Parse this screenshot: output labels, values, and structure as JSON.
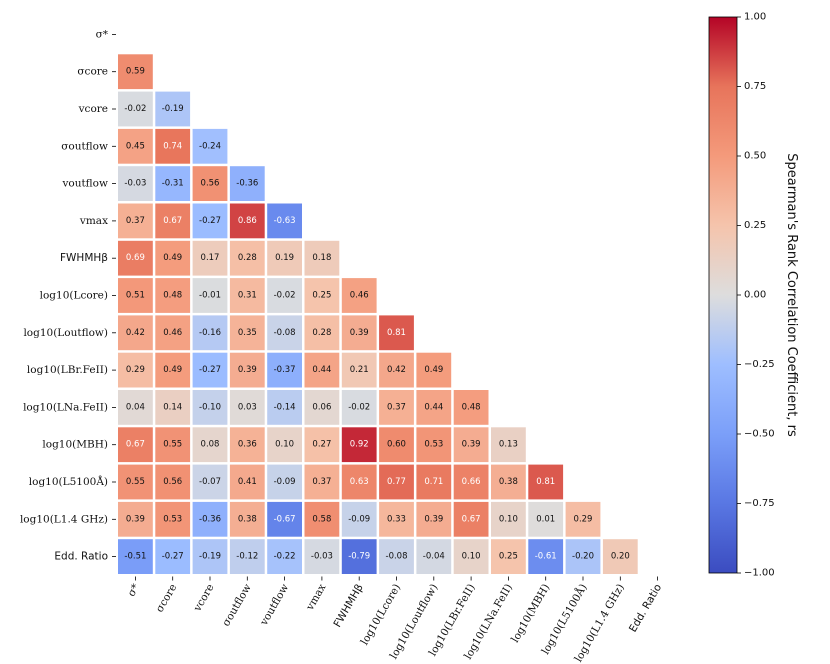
{
  "chart_data": {
    "type": "heatmap",
    "variables": [
      "σ*",
      "σcore",
      "vcore",
      "σoutflow",
      "voutflow",
      "vmax",
      "FWHMHβ",
      "log10(Lcore)",
      "log10(Loutflow)",
      "log10(LBr.FeII)",
      "log10(LNa.FeII)",
      "log10(MBH)",
      "log10(L5100Å)",
      "log10(L1.4 GHz)",
      "Edd. Ratio"
    ],
    "row_labels": [
      "σ*",
      "σcore",
      "vcore",
      "σoutflow",
      "voutflow",
      "vmax",
      "FWHMHβ",
      "log10(Lcore)",
      "log10(Loutflow)",
      "log10(LBr.FeII)",
      "log10(LNa.FeII)",
      "log10(MBH)",
      "log10(L5100Å)",
      "log10(L1.4 GHz)",
      "Edd. Ratio"
    ],
    "col_labels": [
      "σ*",
      "σcore",
      "vcore",
      "σoutflow",
      "voutflow",
      "vmax",
      "FWHMHβ",
      "log10(Lcore)",
      "log10(Loutflow)",
      "log10(LBr.FeII)",
      "log10(LNa.FeII)",
      "log10(MBH)",
      "log10(L5100Å)",
      "log10(L1.4 GHz)",
      "Edd. Ratio"
    ],
    "lower_triangle": [
      [],
      [
        0.59
      ],
      [
        -0.02,
        -0.19
      ],
      [
        0.45,
        0.74,
        -0.24
      ],
      [
        -0.03,
        -0.31,
        0.56,
        -0.36
      ],
      [
        0.37,
        0.67,
        -0.27,
        0.86,
        -0.63
      ],
      [
        0.69,
        0.49,
        0.17,
        0.28,
        0.19,
        0.18
      ],
      [
        0.51,
        0.48,
        -0.01,
        0.31,
        -0.02,
        0.25,
        0.46
      ],
      [
        0.42,
        0.46,
        -0.16,
        0.35,
        -0.08,
        0.28,
        0.39,
        0.81
      ],
      [
        0.29,
        0.49,
        -0.27,
        0.39,
        -0.37,
        0.44,
        0.21,
        0.42,
        0.49
      ],
      [
        0.04,
        0.14,
        -0.1,
        0.03,
        -0.14,
        0.06,
        -0.02,
        0.37,
        0.44,
        0.48
      ],
      [
        0.67,
        0.55,
        0.08,
        0.36,
        0.1,
        0.27,
        0.92,
        0.6,
        0.53,
        0.39,
        0.13
      ],
      [
        0.55,
        0.56,
        -0.07,
        0.41,
        -0.09,
        0.37,
        0.63,
        0.77,
        0.71,
        0.66,
        0.38,
        0.81
      ],
      [
        0.39,
        0.53,
        -0.36,
        0.38,
        -0.67,
        0.58,
        -0.09,
        0.33,
        0.39,
        0.67,
        0.1,
        0.01,
        0.29
      ],
      [
        -0.51,
        -0.27,
        -0.19,
        -0.12,
        -0.22,
        -0.03,
        -0.79,
        -0.08,
        -0.04,
        0.1,
        0.25,
        -0.61,
        -0.2,
        0.2
      ]
    ],
    "colorbar": {
      "label": "Spearman's Rank Correlation Coefficient, rs",
      "range": [
        -1.0,
        1.0
      ],
      "ticks": [
        1.0,
        0.75,
        0.5,
        0.25,
        0.0,
        -0.25,
        -0.5,
        -0.75,
        -1.0
      ],
      "tick_labels": [
        "1.00",
        "0.75",
        "0.50",
        "0.25",
        "0.00",
        "−0.25",
        "−0.50",
        "−0.75",
        "−1.00"
      ],
      "colormap": "coolwarm"
    }
  }
}
